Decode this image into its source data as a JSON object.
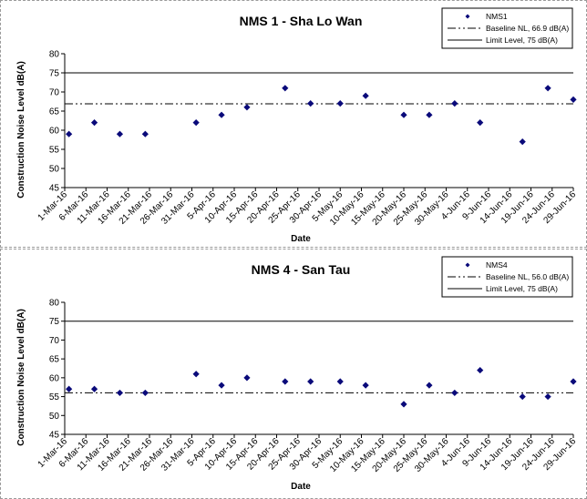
{
  "chart_data": [
    {
      "type": "scatter",
      "title": "NMS 1 - Sha Lo Wan",
      "xlabel": "Date",
      "ylabel": "Construction Noise Level  dB(A)",
      "ylim": [
        45,
        80
      ],
      "yticks": [
        45,
        50,
        55,
        60,
        65,
        70,
        75,
        80
      ],
      "grid": false,
      "legend_position": "top-right",
      "x_tick_labels": [
        "1-Mar-16",
        "6-Mar-16",
        "11-Mar-16",
        "16-Mar-16",
        "21-Mar-16",
        "26-Mar-16",
        "31-Mar-16",
        "5-Apr-16",
        "10-Apr-16",
        "15-Apr-16",
        "20-Apr-16",
        "25-Apr-16",
        "30-Apr-16",
        "5-May-16",
        "10-May-16",
        "15-May-16",
        "20-May-16",
        "25-May-16",
        "30-May-16",
        "4-Jun-16",
        "9-Jun-16",
        "14-Jun-16",
        "19-Jun-16",
        "24-Jun-16",
        "29-Jun-16"
      ],
      "x_range": [
        "1-Mar-16",
        "29-Jun-16"
      ],
      "series": [
        {
          "name": "NMS1",
          "color": "#0a0a7a",
          "marker": "diamond",
          "points": [
            {
              "x": "2-Mar-16",
              "y": 59
            },
            {
              "x": "8-Mar-16",
              "y": 62
            },
            {
              "x": "14-Mar-16",
              "y": 59
            },
            {
              "x": "20-Mar-16",
              "y": 59
            },
            {
              "x": "1-Apr-16",
              "y": 62
            },
            {
              "x": "7-Apr-16",
              "y": 64
            },
            {
              "x": "13-Apr-16",
              "y": 66
            },
            {
              "x": "22-Apr-16",
              "y": 71
            },
            {
              "x": "28-Apr-16",
              "y": 67
            },
            {
              "x": "5-May-16",
              "y": 67
            },
            {
              "x": "11-May-16",
              "y": 69
            },
            {
              "x": "20-May-16",
              "y": 64
            },
            {
              "x": "26-May-16",
              "y": 64
            },
            {
              "x": "1-Jun-16",
              "y": 67
            },
            {
              "x": "7-Jun-16",
              "y": 62
            },
            {
              "x": "17-Jun-16",
              "y": 57
            },
            {
              "x": "23-Jun-16",
              "y": 71
            },
            {
              "x": "29-Jun-16",
              "y": 68
            }
          ]
        }
      ],
      "reference_lines": [
        {
          "name": "Baseline NL, 66.9 dB(A)",
          "y": 66.9,
          "style": "dash-dot-dot",
          "color": "#000000"
        },
        {
          "name": "Limit Level, 75 dB(A)",
          "y": 75,
          "style": "solid",
          "color": "#000000"
        }
      ]
    },
    {
      "type": "scatter",
      "title": "NMS 4 - San Tau",
      "xlabel": "Date",
      "ylabel": "Construction Noise Level  dB(A)",
      "ylim": [
        45,
        80
      ],
      "yticks": [
        45,
        50,
        55,
        60,
        65,
        70,
        75,
        80
      ],
      "grid": false,
      "legend_position": "top-right",
      "x_tick_labels": [
        "1-Mar-16",
        "6-Mar-16",
        "11-Mar-16",
        "16-Mar-16",
        "21-Mar-16",
        "26-Mar-16",
        "31-Mar-16",
        "5-Apr-16",
        "10-Apr-16",
        "15-Apr-16",
        "20-Apr-16",
        "25-Apr-16",
        "30-Apr-16",
        "5-May-16",
        "10-May-16",
        "15-May-16",
        "20-May-16",
        "25-May-16",
        "30-May-16",
        "4-Jun-16",
        "9-Jun-16",
        "14-Jun-16",
        "19-Jun-16",
        "24-Jun-16",
        "29-Jun-16"
      ],
      "x_range": [
        "1-Mar-16",
        "29-Jun-16"
      ],
      "series": [
        {
          "name": "NMS4",
          "color": "#0a0a7a",
          "marker": "diamond",
          "points": [
            {
              "x": "2-Mar-16",
              "y": 57
            },
            {
              "x": "8-Mar-16",
              "y": 57
            },
            {
              "x": "14-Mar-16",
              "y": 56
            },
            {
              "x": "20-Mar-16",
              "y": 56
            },
            {
              "x": "1-Apr-16",
              "y": 61
            },
            {
              "x": "7-Apr-16",
              "y": 58
            },
            {
              "x": "13-Apr-16",
              "y": 60
            },
            {
              "x": "22-Apr-16",
              "y": 59
            },
            {
              "x": "28-Apr-16",
              "y": 59
            },
            {
              "x": "5-May-16",
              "y": 59
            },
            {
              "x": "11-May-16",
              "y": 58
            },
            {
              "x": "20-May-16",
              "y": 53
            },
            {
              "x": "26-May-16",
              "y": 58
            },
            {
              "x": "1-Jun-16",
              "y": 56
            },
            {
              "x": "7-Jun-16",
              "y": 62
            },
            {
              "x": "17-Jun-16",
              "y": 55
            },
            {
              "x": "23-Jun-16",
              "y": 55
            },
            {
              "x": "29-Jun-16",
              "y": 59
            }
          ]
        }
      ],
      "reference_lines": [
        {
          "name": "Baseline NL, 56.0 dB(A)",
          "y": 56.0,
          "style": "dash-dot-dot",
          "color": "#000000"
        },
        {
          "name": "Limit Level, 75 dB(A)",
          "y": 75,
          "style": "solid",
          "color": "#000000"
        }
      ]
    }
  ]
}
